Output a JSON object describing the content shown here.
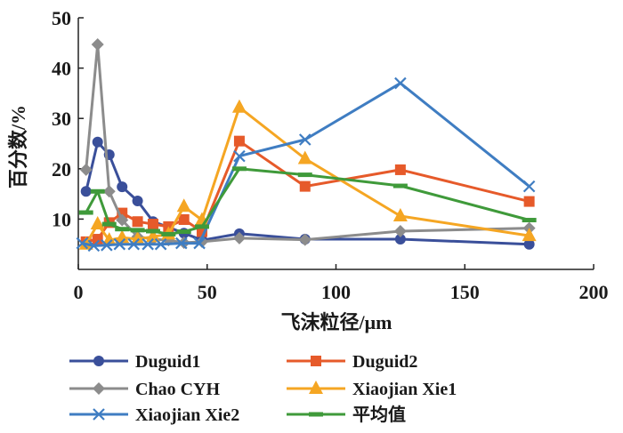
{
  "chart_data": {
    "type": "line",
    "title": "",
    "xlabel": "飞沫粒径/μm",
    "ylabel": "百分数/%",
    "xlim": [
      0,
      200
    ],
    "ylim": [
      0,
      50
    ],
    "xticks": [
      "0",
      "50",
      "100",
      "150",
      "200"
    ],
    "xtick_values": [
      0,
      50,
      100,
      150,
      200
    ],
    "yticks": [
      "10",
      "20",
      "30",
      "40",
      "50"
    ],
    "ytick_values": [
      10,
      20,
      30,
      40,
      50
    ],
    "grid": false,
    "legend_position": "bottom",
    "series": [
      {
        "name": "Duguid1",
        "color": "#3a4f9a",
        "marker": "circle",
        "points": [
          [
            3,
            15.5
          ],
          [
            7.5,
            25.3
          ],
          [
            12,
            22.8
          ],
          [
            17,
            16.4
          ],
          [
            23,
            13.6
          ],
          [
            29,
            9.5
          ],
          [
            41,
            7.2
          ],
          [
            48,
            5.8
          ],
          [
            62.5,
            7.1
          ],
          [
            88,
            6.0
          ],
          [
            125,
            6.0
          ],
          [
            175,
            5.0
          ]
        ]
      },
      {
        "name": "Duguid2",
        "color": "#e65a2a",
        "marker": "square",
        "points": [
          [
            3,
            5.5
          ],
          [
            7.5,
            6.0
          ],
          [
            12,
            9.3
          ],
          [
            17,
            11.2
          ],
          [
            23,
            9.5
          ],
          [
            29,
            9.0
          ],
          [
            35,
            8.5
          ],
          [
            41,
            9.9
          ],
          [
            48,
            7.5
          ],
          [
            62.5,
            25.5
          ],
          [
            88,
            16.5
          ],
          [
            125,
            19.8
          ],
          [
            175,
            13.5
          ]
        ]
      },
      {
        "name": "Chao CYH",
        "color": "#8c8c8c",
        "marker": "diamond",
        "points": [
          [
            3,
            19.8
          ],
          [
            7.5,
            44.7
          ],
          [
            12,
            15.5
          ],
          [
            17,
            9.8
          ],
          [
            23,
            6.5
          ],
          [
            29,
            6.0
          ],
          [
            35,
            5.8
          ],
          [
            41,
            5.3
          ],
          [
            48,
            5.5
          ],
          [
            62.5,
            6.2
          ],
          [
            88,
            5.9
          ],
          [
            125,
            7.6
          ],
          [
            175,
            8.2
          ]
        ]
      },
      {
        "name": "Xiaojian Xie1",
        "color": "#f5a623",
        "marker": "triangle",
        "points": [
          [
            3,
            5.0
          ],
          [
            7.5,
            9.0
          ],
          [
            12,
            5.8
          ],
          [
            17,
            6.3
          ],
          [
            23,
            6.0
          ],
          [
            29,
            6.5
          ],
          [
            35,
            7.0
          ],
          [
            41,
            12.5
          ],
          [
            48,
            9.8
          ],
          [
            62.5,
            32.2
          ],
          [
            88,
            22.0
          ],
          [
            125,
            10.6
          ],
          [
            175,
            6.7
          ]
        ]
      },
      {
        "name": "Xiaojian Xie2",
        "color": "#3f7dc2",
        "marker": "x",
        "points": [
          [
            1.5,
            5.2
          ],
          [
            6,
            4.7
          ],
          [
            11,
            4.8
          ],
          [
            16,
            5.0
          ],
          [
            21.5,
            5.0
          ],
          [
            27,
            5.0
          ],
          [
            32,
            5.0
          ],
          [
            40,
            5.2
          ],
          [
            47,
            5.2
          ],
          [
            62.5,
            22.5
          ],
          [
            88,
            25.8
          ],
          [
            125,
            37.0
          ],
          [
            175,
            16.5
          ]
        ]
      },
      {
        "name": "平均值",
        "color": "#3f9a3a",
        "marker": "dash",
        "points": [
          [
            3,
            11.3
          ],
          [
            7.5,
            15.5
          ],
          [
            12,
            9.0
          ],
          [
            17,
            8.0
          ],
          [
            23,
            7.8
          ],
          [
            29,
            7.6
          ],
          [
            35,
            7.0
          ],
          [
            41,
            7.5
          ],
          [
            48,
            8.5
          ],
          [
            62.5,
            20.0
          ],
          [
            88,
            18.8
          ],
          [
            125,
            16.6
          ],
          [
            175,
            9.8
          ]
        ]
      }
    ]
  }
}
